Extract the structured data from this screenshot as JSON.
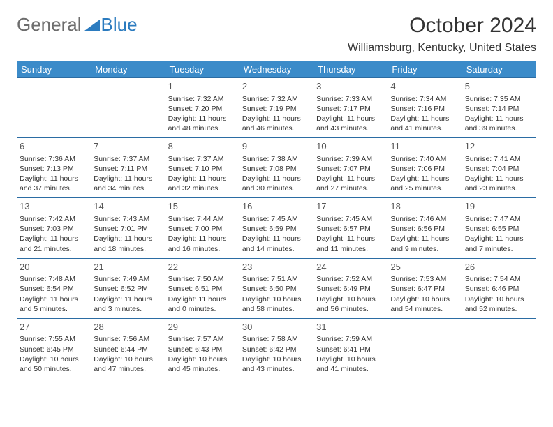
{
  "logo": {
    "part1": "General",
    "part2": "Blue"
  },
  "title": "October 2024",
  "location": "Williamsburg, Kentucky, United States",
  "day_headers": [
    "Sunday",
    "Monday",
    "Tuesday",
    "Wednesday",
    "Thursday",
    "Friday",
    "Saturday"
  ],
  "colors": {
    "header_bg": "#3b8bc9",
    "header_text": "#ffffff",
    "row_border": "#2b6ca3",
    "logo_gray": "#6d6d6d",
    "logo_blue": "#2b7bbf",
    "text": "#333333"
  },
  "weeks": [
    [
      null,
      null,
      {
        "n": "1",
        "sr": "Sunrise: 7:32 AM",
        "ss": "Sunset: 7:20 PM",
        "d1": "Daylight: 11 hours",
        "d2": "and 48 minutes."
      },
      {
        "n": "2",
        "sr": "Sunrise: 7:32 AM",
        "ss": "Sunset: 7:19 PM",
        "d1": "Daylight: 11 hours",
        "d2": "and 46 minutes."
      },
      {
        "n": "3",
        "sr": "Sunrise: 7:33 AM",
        "ss": "Sunset: 7:17 PM",
        "d1": "Daylight: 11 hours",
        "d2": "and 43 minutes."
      },
      {
        "n": "4",
        "sr": "Sunrise: 7:34 AM",
        "ss": "Sunset: 7:16 PM",
        "d1": "Daylight: 11 hours",
        "d2": "and 41 minutes."
      },
      {
        "n": "5",
        "sr": "Sunrise: 7:35 AM",
        "ss": "Sunset: 7:14 PM",
        "d1": "Daylight: 11 hours",
        "d2": "and 39 minutes."
      }
    ],
    [
      {
        "n": "6",
        "sr": "Sunrise: 7:36 AM",
        "ss": "Sunset: 7:13 PM",
        "d1": "Daylight: 11 hours",
        "d2": "and 37 minutes."
      },
      {
        "n": "7",
        "sr": "Sunrise: 7:37 AM",
        "ss": "Sunset: 7:11 PM",
        "d1": "Daylight: 11 hours",
        "d2": "and 34 minutes."
      },
      {
        "n": "8",
        "sr": "Sunrise: 7:37 AM",
        "ss": "Sunset: 7:10 PM",
        "d1": "Daylight: 11 hours",
        "d2": "and 32 minutes."
      },
      {
        "n": "9",
        "sr": "Sunrise: 7:38 AM",
        "ss": "Sunset: 7:08 PM",
        "d1": "Daylight: 11 hours",
        "d2": "and 30 minutes."
      },
      {
        "n": "10",
        "sr": "Sunrise: 7:39 AM",
        "ss": "Sunset: 7:07 PM",
        "d1": "Daylight: 11 hours",
        "d2": "and 27 minutes."
      },
      {
        "n": "11",
        "sr": "Sunrise: 7:40 AM",
        "ss": "Sunset: 7:06 PM",
        "d1": "Daylight: 11 hours",
        "d2": "and 25 minutes."
      },
      {
        "n": "12",
        "sr": "Sunrise: 7:41 AM",
        "ss": "Sunset: 7:04 PM",
        "d1": "Daylight: 11 hours",
        "d2": "and 23 minutes."
      }
    ],
    [
      {
        "n": "13",
        "sr": "Sunrise: 7:42 AM",
        "ss": "Sunset: 7:03 PM",
        "d1": "Daylight: 11 hours",
        "d2": "and 21 minutes."
      },
      {
        "n": "14",
        "sr": "Sunrise: 7:43 AM",
        "ss": "Sunset: 7:01 PM",
        "d1": "Daylight: 11 hours",
        "d2": "and 18 minutes."
      },
      {
        "n": "15",
        "sr": "Sunrise: 7:44 AM",
        "ss": "Sunset: 7:00 PM",
        "d1": "Daylight: 11 hours",
        "d2": "and 16 minutes."
      },
      {
        "n": "16",
        "sr": "Sunrise: 7:45 AM",
        "ss": "Sunset: 6:59 PM",
        "d1": "Daylight: 11 hours",
        "d2": "and 14 minutes."
      },
      {
        "n": "17",
        "sr": "Sunrise: 7:45 AM",
        "ss": "Sunset: 6:57 PM",
        "d1": "Daylight: 11 hours",
        "d2": "and 11 minutes."
      },
      {
        "n": "18",
        "sr": "Sunrise: 7:46 AM",
        "ss": "Sunset: 6:56 PM",
        "d1": "Daylight: 11 hours",
        "d2": "and 9 minutes."
      },
      {
        "n": "19",
        "sr": "Sunrise: 7:47 AM",
        "ss": "Sunset: 6:55 PM",
        "d1": "Daylight: 11 hours",
        "d2": "and 7 minutes."
      }
    ],
    [
      {
        "n": "20",
        "sr": "Sunrise: 7:48 AM",
        "ss": "Sunset: 6:54 PM",
        "d1": "Daylight: 11 hours",
        "d2": "and 5 minutes."
      },
      {
        "n": "21",
        "sr": "Sunrise: 7:49 AM",
        "ss": "Sunset: 6:52 PM",
        "d1": "Daylight: 11 hours",
        "d2": "and 3 minutes."
      },
      {
        "n": "22",
        "sr": "Sunrise: 7:50 AM",
        "ss": "Sunset: 6:51 PM",
        "d1": "Daylight: 11 hours",
        "d2": "and 0 minutes."
      },
      {
        "n": "23",
        "sr": "Sunrise: 7:51 AM",
        "ss": "Sunset: 6:50 PM",
        "d1": "Daylight: 10 hours",
        "d2": "and 58 minutes."
      },
      {
        "n": "24",
        "sr": "Sunrise: 7:52 AM",
        "ss": "Sunset: 6:49 PM",
        "d1": "Daylight: 10 hours",
        "d2": "and 56 minutes."
      },
      {
        "n": "25",
        "sr": "Sunrise: 7:53 AM",
        "ss": "Sunset: 6:47 PM",
        "d1": "Daylight: 10 hours",
        "d2": "and 54 minutes."
      },
      {
        "n": "26",
        "sr": "Sunrise: 7:54 AM",
        "ss": "Sunset: 6:46 PM",
        "d1": "Daylight: 10 hours",
        "d2": "and 52 minutes."
      }
    ],
    [
      {
        "n": "27",
        "sr": "Sunrise: 7:55 AM",
        "ss": "Sunset: 6:45 PM",
        "d1": "Daylight: 10 hours",
        "d2": "and 50 minutes."
      },
      {
        "n": "28",
        "sr": "Sunrise: 7:56 AM",
        "ss": "Sunset: 6:44 PM",
        "d1": "Daylight: 10 hours",
        "d2": "and 47 minutes."
      },
      {
        "n": "29",
        "sr": "Sunrise: 7:57 AM",
        "ss": "Sunset: 6:43 PM",
        "d1": "Daylight: 10 hours",
        "d2": "and 45 minutes."
      },
      {
        "n": "30",
        "sr": "Sunrise: 7:58 AM",
        "ss": "Sunset: 6:42 PM",
        "d1": "Daylight: 10 hours",
        "d2": "and 43 minutes."
      },
      {
        "n": "31",
        "sr": "Sunrise: 7:59 AM",
        "ss": "Sunset: 6:41 PM",
        "d1": "Daylight: 10 hours",
        "d2": "and 41 minutes."
      },
      null,
      null
    ]
  ]
}
